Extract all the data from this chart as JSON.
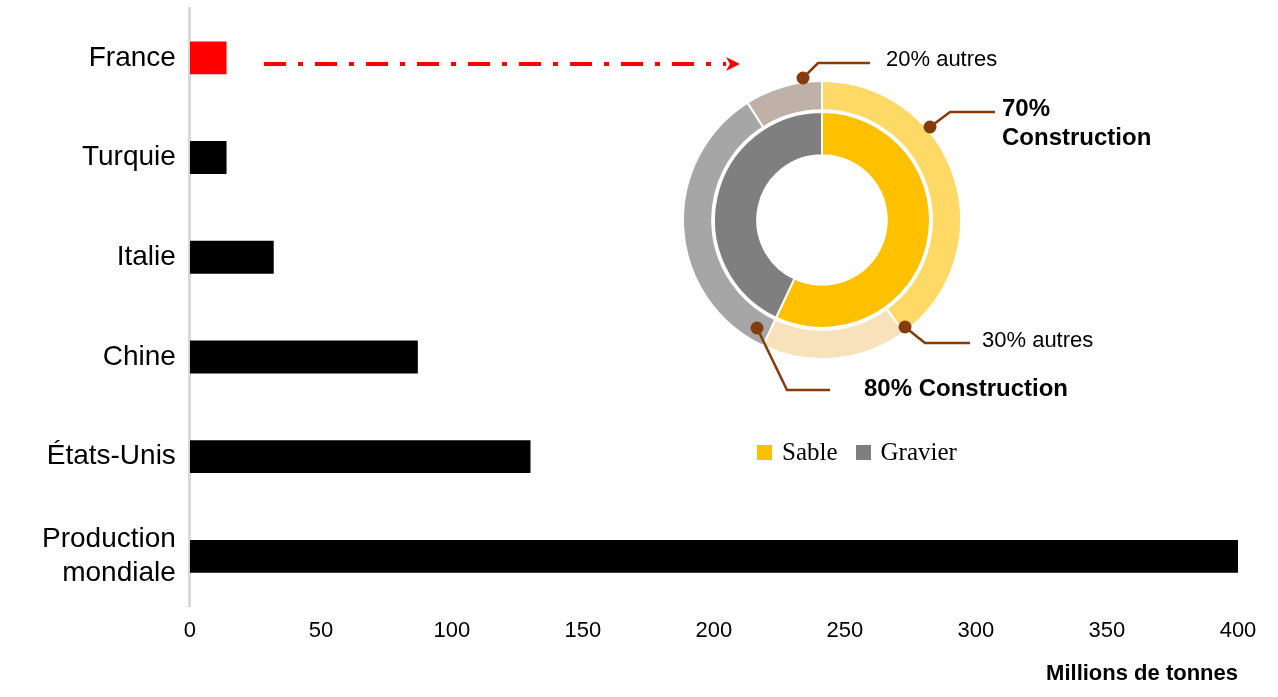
{
  "chart_data": [
    {
      "type": "bar",
      "orientation": "horizontal",
      "categories": [
        "France",
        "Turquie",
        "Italie",
        "Chine",
        "États-Unis",
        "Production mondiale"
      ],
      "values": [
        14,
        14,
        32,
        87,
        130,
        400
      ],
      "colors": [
        "#ff0000",
        "#000000",
        "#000000",
        "#000000",
        "#000000",
        "#000000"
      ],
      "xlim": [
        0,
        400
      ],
      "xticks": [
        0,
        50,
        100,
        150,
        200,
        250,
        300,
        350,
        400
      ],
      "xlabel": "Millions de tonnes"
    },
    {
      "type": "donut",
      "categories": [
        "Sable",
        "Gravier"
      ],
      "values": [
        57,
        43
      ],
      "colors": [
        "#ffc000",
        "#7f7f7f"
      ],
      "legend": "bottom"
    },
    {
      "type": "donut",
      "categories": [
        null,
        null,
        null,
        null
      ],
      "values": [
        40,
        17,
        34,
        9
      ],
      "colors": [
        "#ffd966",
        "#f7e2bb",
        "#a6a6a6",
        "#bfb0a8"
      ],
      "annotations": [
        "20% autres",
        "70% Construction",
        "30% autres",
        "80% Construction"
      ]
    }
  ]
}
